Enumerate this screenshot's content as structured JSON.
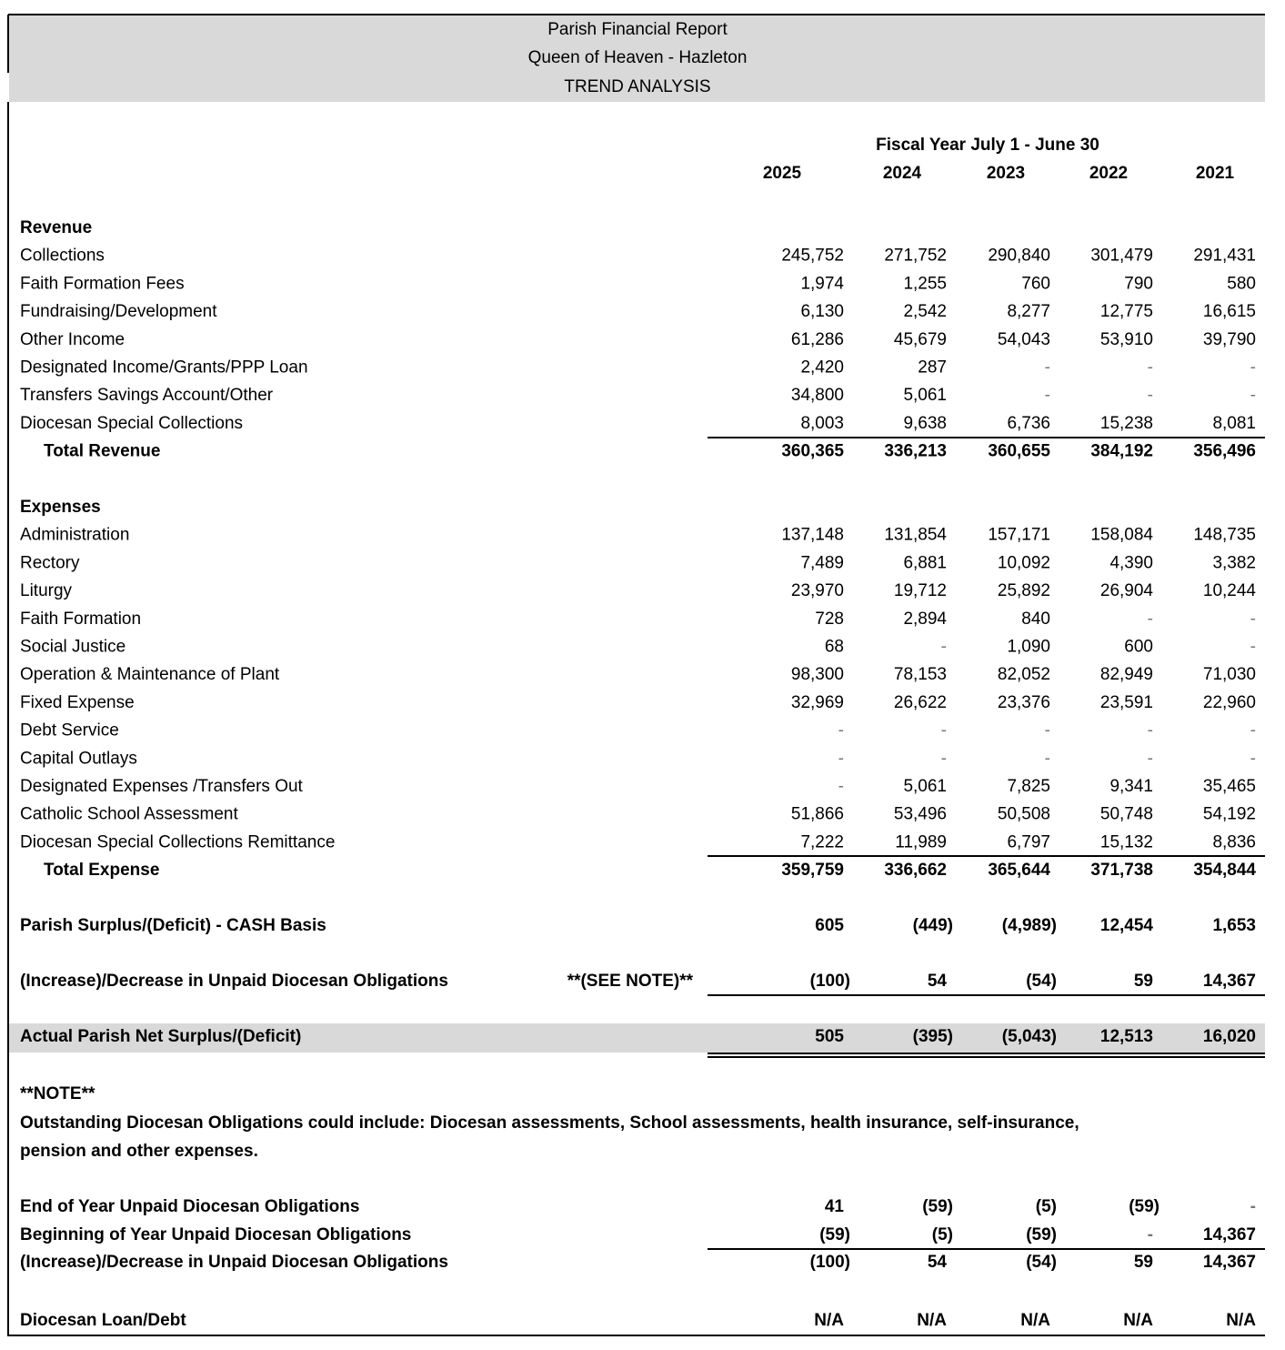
{
  "header": {
    "title": "Parish Financial Report",
    "parish": "Queen of Heaven - Hazleton",
    "subtitle": "TREND ANALYSIS"
  },
  "period_label": "Fiscal Year July 1 - June 30",
  "years": [
    "2025",
    "2024",
    "2023",
    "2022",
    "2021"
  ],
  "sections": [
    {
      "heading": "Revenue",
      "rows": [
        {
          "label": "Collections",
          "values": [
            "245,752",
            "271,752",
            "290,840",
            "301,479",
            "291,431"
          ]
        },
        {
          "label": "Faith Formation Fees",
          "values": [
            "1,974",
            "1,255",
            "760",
            "790",
            "580"
          ]
        },
        {
          "label": "Fundraising/Development",
          "values": [
            "6,130",
            "2,542",
            "8,277",
            "12,775",
            "16,615"
          ]
        },
        {
          "label": "Other Income",
          "values": [
            "61,286",
            "45,679",
            "54,043",
            "53,910",
            "39,790"
          ]
        },
        {
          "label": "Designated Income/Grants/PPP Loan",
          "values": [
            "2,420",
            "287",
            "-",
            "-",
            "-"
          ]
        },
        {
          "label": "Transfers Savings Account/Other",
          "values": [
            "34,800",
            "5,061",
            "-",
            "-",
            "-"
          ]
        },
        {
          "label": "Diocesan Special Collections",
          "values": [
            "8,003",
            "9,638",
            "6,736",
            "15,238",
            "8,081"
          ]
        }
      ],
      "total": {
        "label": "Total Revenue",
        "values": [
          "360,365",
          "336,213",
          "360,655",
          "384,192",
          "356,496"
        ]
      }
    },
    {
      "heading": "Expenses",
      "rows": [
        {
          "label": "Administration",
          "values": [
            "137,148",
            "131,854",
            "157,171",
            "158,084",
            "148,735"
          ]
        },
        {
          "label": "Rectory",
          "values": [
            "7,489",
            "6,881",
            "10,092",
            "4,390",
            "3,382"
          ]
        },
        {
          "label": "Liturgy",
          "values": [
            "23,970",
            "19,712",
            "25,892",
            "26,904",
            "10,244"
          ]
        },
        {
          "label": "Faith Formation",
          "values": [
            "728",
            "2,894",
            "840",
            "-",
            "-"
          ]
        },
        {
          "label": "Social Justice",
          "values": [
            "68",
            "-",
            "1,090",
            "600",
            "-"
          ]
        },
        {
          "label": "Operation & Maintenance of Plant",
          "values": [
            "98,300",
            "78,153",
            "82,052",
            "82,949",
            "71,030"
          ]
        },
        {
          "label": "Fixed Expense",
          "values": [
            "32,969",
            "26,622",
            "23,376",
            "23,591",
            "22,960"
          ]
        },
        {
          "label": "Debt Service",
          "values": [
            "-",
            "-",
            "-",
            "-",
            "-"
          ]
        },
        {
          "label": "Capital Outlays",
          "values": [
            "-",
            "-",
            "-",
            "-",
            "-"
          ]
        },
        {
          "label": "Designated Expenses /Transfers Out",
          "values": [
            "-",
            "5,061",
            "7,825",
            "9,341",
            "35,465"
          ]
        },
        {
          "label": "Catholic School Assessment",
          "values": [
            "51,866",
            "53,496",
            "50,508",
            "50,748",
            "54,192"
          ]
        },
        {
          "label": "Diocesan Special Collections Remittance",
          "values": [
            "7,222",
            "11,989",
            "6,797",
            "15,132",
            "8,836"
          ]
        }
      ],
      "total": {
        "label": "Total Expense",
        "values": [
          "359,759",
          "336,662",
          "365,644",
          "371,738",
          "354,844"
        ]
      }
    }
  ],
  "surplus": {
    "label": "Parish Surplus/(Deficit) - CASH Basis",
    "values": [
      "605",
      "(449)",
      "(4,989)",
      "12,454",
      "1,653"
    ]
  },
  "unpaid_change": {
    "label": "(Increase)/Decrease in Unpaid Diocesan Obligations",
    "note_ref": "**(SEE NOTE)**",
    "values": [
      "(100)",
      "54",
      "(54)",
      "59",
      "14,367"
    ]
  },
  "net": {
    "label": "Actual Parish Net Surplus/(Deficit)",
    "values": [
      "505",
      "(395)",
      "(5,043)",
      "12,513",
      "16,020"
    ]
  },
  "note": {
    "heading": "**NOTE**",
    "lines": [
      "Outstanding Diocesan Obligations could include:  Diocesan assessments, School assessments, health insurance, self-insurance,",
      "pension and other expenses."
    ]
  },
  "obligations": {
    "rows": [
      {
        "label": "End of Year Unpaid Diocesan Obligations",
        "values": [
          "41",
          "(59)",
          "(5)",
          "(59)",
          "-"
        ]
      },
      {
        "label": "Beginning of Year Unpaid Diocesan Obligations",
        "values": [
          "(59)",
          "(5)",
          "(59)",
          "-",
          "14,367"
        ]
      }
    ],
    "total": {
      "label": "(Increase)/Decrease in Unpaid Diocesan Obligations",
      "values": [
        "(100)",
        "54",
        "(54)",
        "59",
        "14,367"
      ]
    }
  },
  "loan": {
    "label": "Diocesan Loan/Debt",
    "values": [
      "N/A",
      "N/A",
      "N/A",
      "N/A",
      "N/A"
    ]
  }
}
